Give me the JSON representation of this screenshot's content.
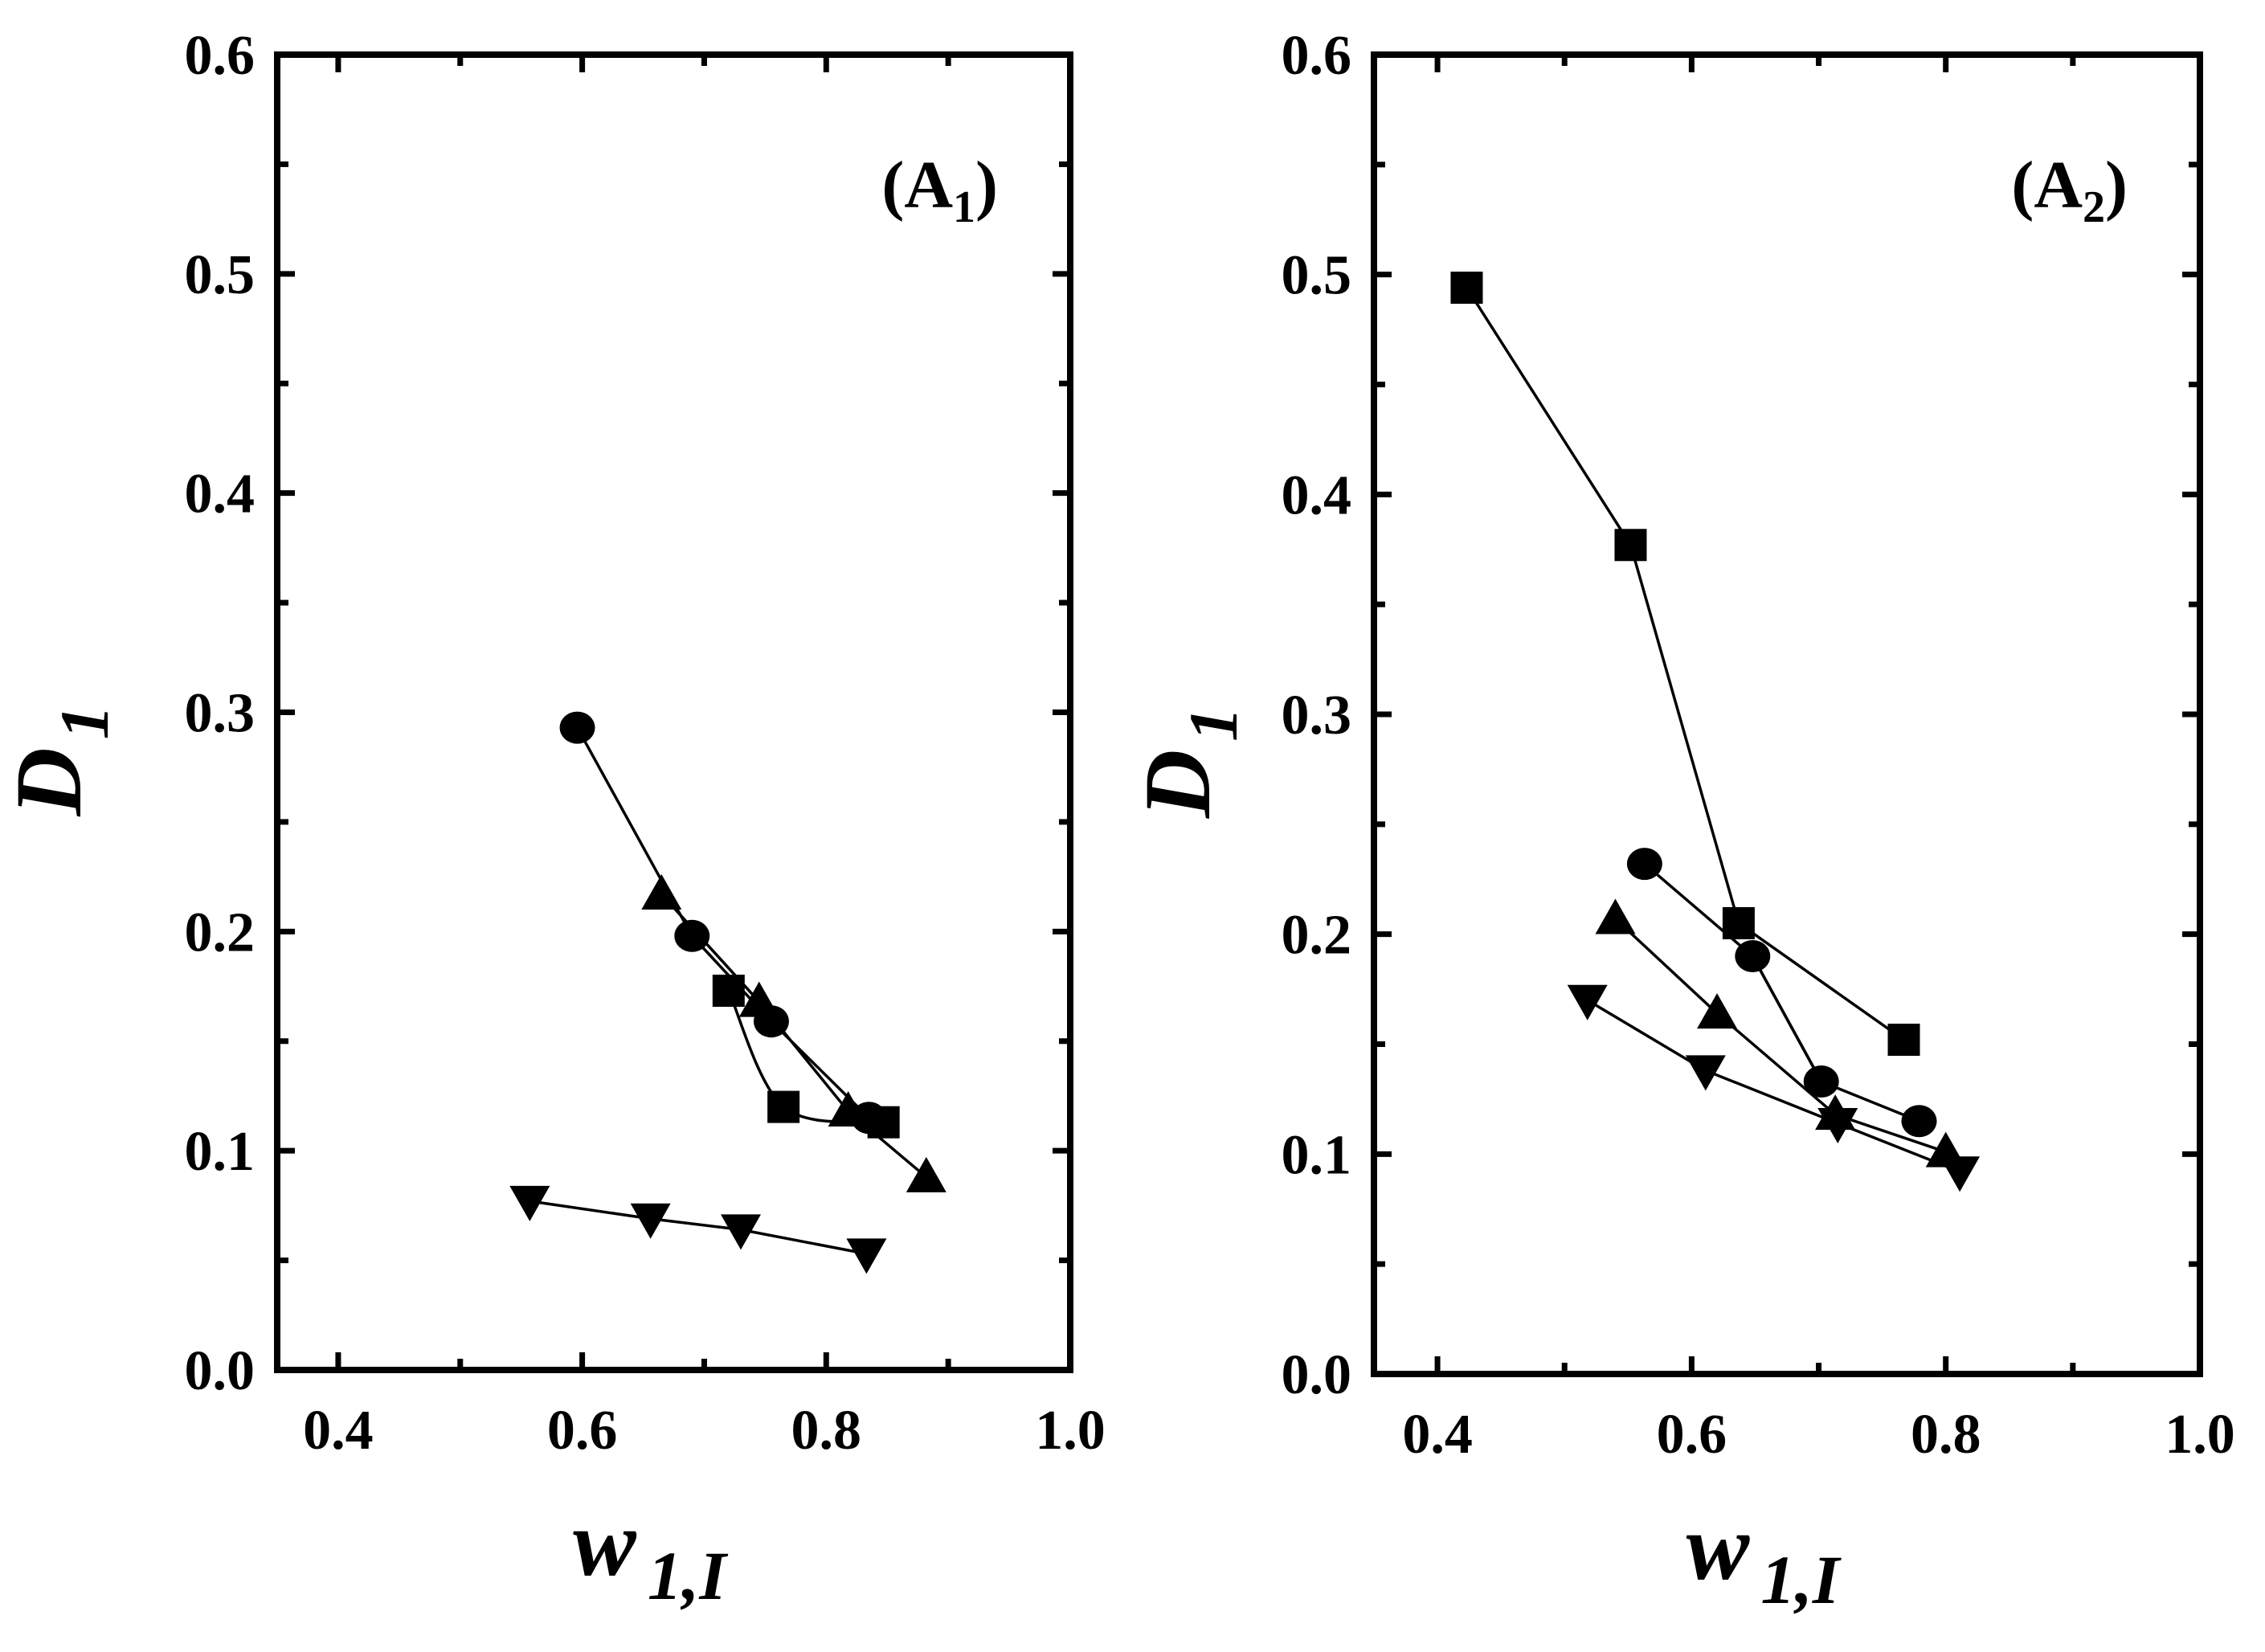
{
  "chart_data": [
    {
      "type": "scatter",
      "title": "",
      "panel_label": "(A",
      "panel_label_sub": "1",
      "panel_label_close": ")",
      "xlabel": "w",
      "xlabel_sub": "1,I",
      "ylabel": "D",
      "ylabel_sub": "1",
      "xlim": [
        0.35,
        1.0
      ],
      "ylim": [
        0.0,
        0.6
      ],
      "xticks": [
        0.4,
        0.6,
        0.8,
        1.0
      ],
      "xtick_labels": [
        "0.4",
        "0.6",
        "0.8",
        "1.0"
      ],
      "yticks": [
        0.0,
        0.1,
        0.2,
        0.3,
        0.4,
        0.5,
        0.6
      ],
      "ytick_labels": [
        "0.0",
        "0.1",
        "0.2",
        "0.3",
        "0.4",
        "0.5",
        "0.6"
      ],
      "grid": false,
      "series": [
        {
          "marker": "square",
          "curve": true,
          "x": [
            0.72,
            0.765,
            0.847
          ],
          "y": [
            0.173,
            0.12,
            0.113
          ]
        },
        {
          "marker": "circle",
          "curve": false,
          "x": [
            0.596,
            0.69,
            0.755,
            0.835
          ],
          "y": [
            0.293,
            0.198,
            0.159,
            0.115
          ]
        },
        {
          "marker": "triangle-up",
          "curve": false,
          "x": [
            0.665,
            0.745,
            0.818,
            0.882
          ],
          "y": [
            0.217,
            0.168,
            0.118,
            0.088
          ]
        },
        {
          "marker": "triangle-down",
          "curve": false,
          "x": [
            0.557,
            0.656,
            0.73,
            0.833
          ],
          "y": [
            0.077,
            0.069,
            0.064,
            0.053
          ]
        }
      ]
    },
    {
      "type": "scatter",
      "title": "",
      "panel_label": "(A",
      "panel_label_sub": "2",
      "panel_label_close": ")",
      "xlabel": "w",
      "xlabel_sub": "1,I",
      "ylabel": "D",
      "ylabel_sub": "1",
      "xlim": [
        0.35,
        1.0
      ],
      "ylim": [
        0.0,
        0.6
      ],
      "xticks": [
        0.4,
        0.6,
        0.8,
        1.0
      ],
      "xtick_labels": [
        "0.4",
        "0.6",
        "0.8",
        "1.0"
      ],
      "yticks": [
        0.0,
        0.1,
        0.2,
        0.3,
        0.4,
        0.5,
        0.6
      ],
      "ytick_labels": [
        "0.0",
        "0.1",
        "0.2",
        "0.3",
        "0.4",
        "0.5",
        "0.6"
      ],
      "grid": false,
      "series": [
        {
          "marker": "square",
          "curve": false,
          "x": [
            0.423,
            0.552,
            0.637,
            0.767
          ],
          "y": [
            0.494,
            0.377,
            0.205,
            0.152
          ]
        },
        {
          "marker": "circle",
          "curve": false,
          "x": [
            0.563,
            0.648,
            0.702,
            0.779
          ],
          "y": [
            0.232,
            0.19,
            0.133,
            0.115
          ]
        },
        {
          "marker": "triangle-up",
          "curve": false,
          "x": [
            0.54,
            0.62,
            0.713,
            0.8
          ],
          "y": [
            0.207,
            0.164,
            0.118,
            0.101
          ]
        },
        {
          "marker": "triangle-down",
          "curve": false,
          "x": [
            0.518,
            0.611,
            0.715,
            0.811
          ],
          "y": [
            0.17,
            0.138,
            0.114,
            0.092
          ]
        },
        {
          "marker": "none",
          "curve": false,
          "x": [
            0.648,
            0.702
          ],
          "y": [
            0.19,
            0.133
          ]
        }
      ]
    }
  ]
}
